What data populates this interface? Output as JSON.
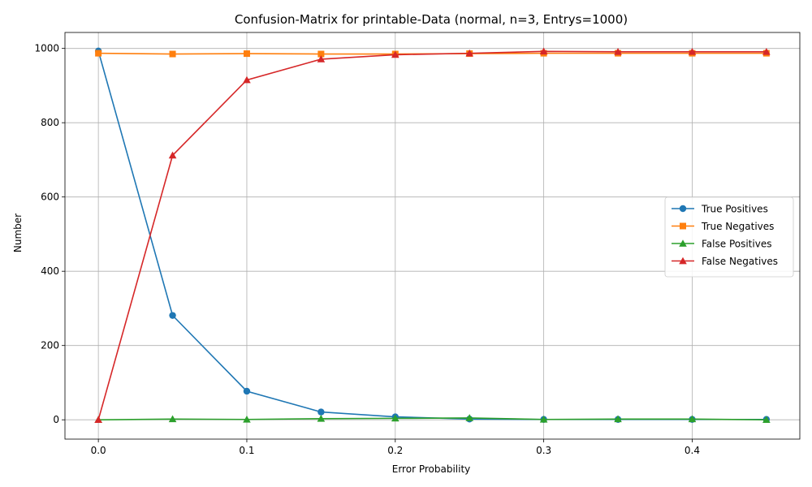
{
  "chart_data": {
    "type": "line",
    "title": "Confusion-Matrix for printable-Data (normal, n=3, Entrys=1000)",
    "xlabel": "Error Probability",
    "ylabel": "Number",
    "xlim": [
      -0.0225,
      0.4725
    ],
    "ylim": [
      -52,
      1043
    ],
    "x_ticks": [
      0.0,
      0.1,
      0.2,
      0.3,
      0.4
    ],
    "x_tick_labels": [
      "0.0",
      "0.1",
      "0.2",
      "0.3",
      "0.4"
    ],
    "y_ticks": [
      0,
      200,
      400,
      600,
      800,
      1000
    ],
    "y_tick_labels": [
      "0",
      "200",
      "400",
      "600",
      "800",
      "1000"
    ],
    "grid": true,
    "legend_position": "center-right",
    "x": [
      0.0,
      0.05,
      0.1,
      0.15,
      0.2,
      0.25,
      0.3,
      0.35,
      0.4,
      0.45
    ],
    "series": [
      {
        "name": "True Positives",
        "color": "#1f77b4",
        "marker": "circle",
        "values": [
          993,
          281,
          77,
          21,
          8,
          2,
          1,
          1,
          1,
          1
        ]
      },
      {
        "name": "True Negatives",
        "color": "#ff7f0e",
        "marker": "square",
        "values": [
          987,
          985,
          986,
          985,
          985,
          986,
          987,
          987,
          987,
          987
        ]
      },
      {
        "name": "False Positives",
        "color": "#2ca02c",
        "marker": "triangle",
        "values": [
          0,
          2,
          1,
          3,
          4,
          5,
          1,
          2,
          2,
          0
        ]
      },
      {
        "name": "False Negatives",
        "color": "#d62728",
        "marker": "triangle",
        "values": [
          0,
          712,
          915,
          971,
          983,
          987,
          992,
          991,
          991,
          991
        ]
      }
    ]
  }
}
